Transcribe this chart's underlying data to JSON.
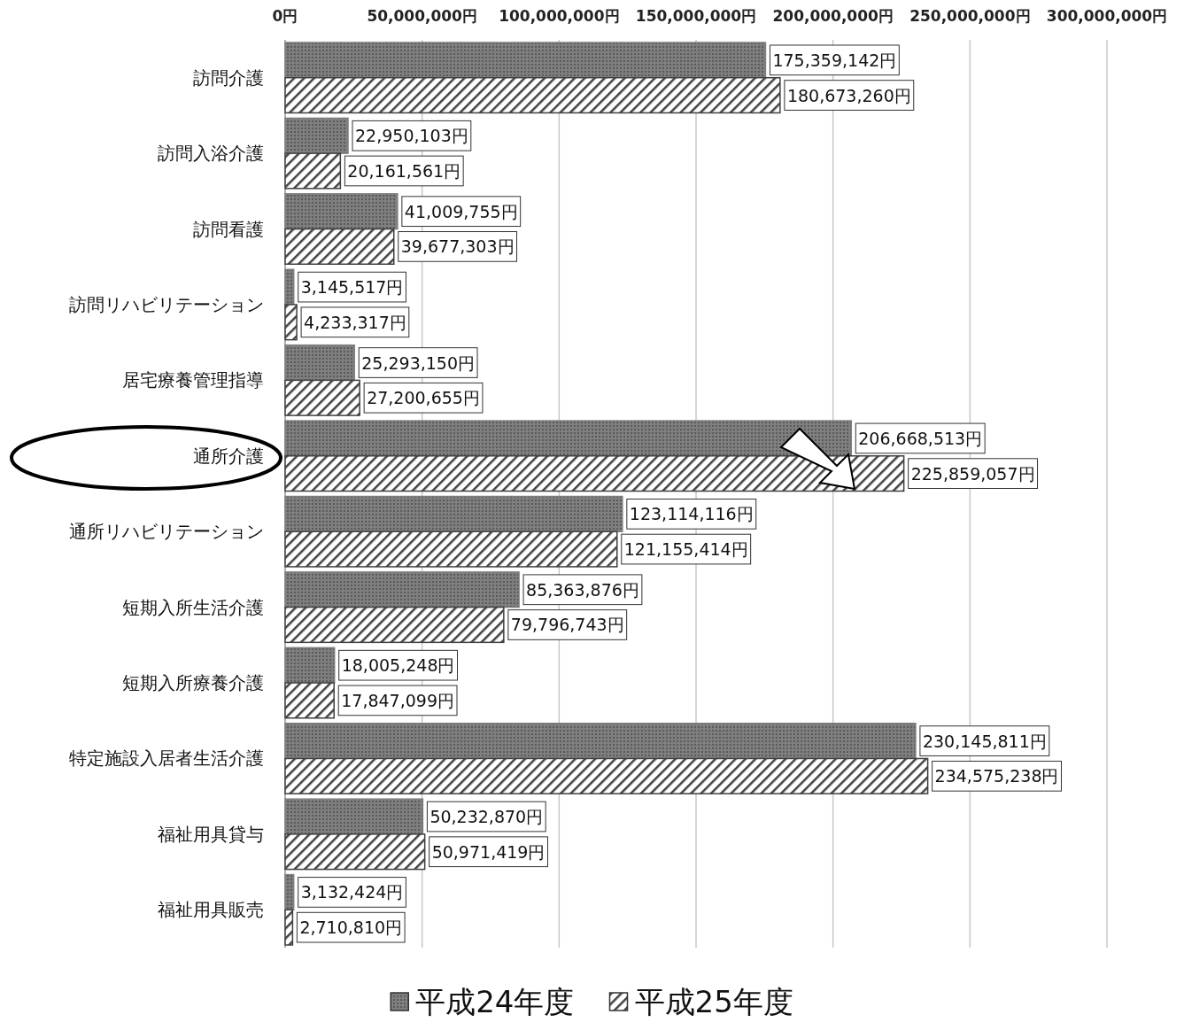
{
  "chart_data": {
    "type": "bar",
    "orientation": "horizontal",
    "categories": [
      "訪問介護",
      "訪問入浴介護",
      "訪問看護",
      "訪問リハビリテーション",
      "居宅療養管理指導",
      "通所介護",
      "通所リハビリテーション",
      "短期入所生活介護",
      "短期入所療養介護",
      "特定施設入居者生活介護",
      "福祉用具貸与",
      "福祉用具販売"
    ],
    "series": [
      {
        "name": "平成24年度",
        "color": "#7f7f7f",
        "values": [
          175359142,
          22950103,
          41009755,
          3145517,
          25293150,
          206668513,
          123114116,
          85363876,
          18005248,
          230145811,
          50232870,
          3132424
        ],
        "value_labels": [
          "175,359,142円",
          "22,950,103円",
          "41,009,755円",
          "3,145,517円",
          "25,293,150円",
          "206,668,513円",
          "123,114,116円",
          "85,363,876円",
          "18,005,248円",
          "230,145,811円",
          "50,232,870円",
          "3,132,424円"
        ]
      },
      {
        "name": "平成25年度",
        "color": "#404040",
        "values": [
          180673260,
          20161561,
          39677303,
          4233317,
          27200655,
          225859057,
          121155414,
          79796743,
          17847099,
          234575238,
          50971419,
          2710810
        ],
        "value_labels": [
          "180,673,260円",
          "20,161,561円",
          "39,677,303円",
          "4,233,317円",
          "27,200,655円",
          "225,859,057円",
          "121,155,414円",
          "79,796,743円",
          "17,847,099円",
          "234,575,238円",
          "50,971,419円",
          "2,710,810円"
        ]
      }
    ],
    "xlim": [
      0,
      300000000
    ],
    "xticks": [
      {
        "value": 0,
        "label": "0円"
      },
      {
        "value": 50000000,
        "label": "50,000,000円"
      },
      {
        "value": 100000000,
        "label": "100,000,000円"
      },
      {
        "value": 150000000,
        "label": "150,000,000円"
      },
      {
        "value": 200000000,
        "label": "200,000,000円"
      },
      {
        "value": 250000000,
        "label": "250,000,000円"
      },
      {
        "value": 300000000,
        "label": "300,000,000円"
      }
    ],
    "grid": "x",
    "legend": "bottom"
  }
}
